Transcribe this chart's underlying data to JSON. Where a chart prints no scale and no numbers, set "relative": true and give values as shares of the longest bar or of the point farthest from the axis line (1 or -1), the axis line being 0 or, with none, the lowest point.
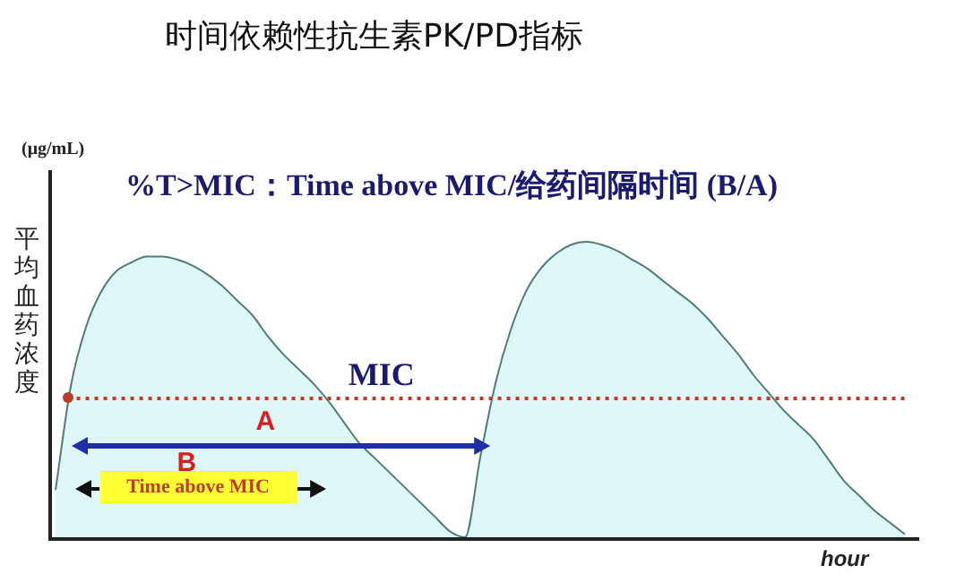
{
  "chart_data": {
    "type": "area",
    "title": "时间依赖性抗生素PK/PD指标",
    "subtitle": "%T>MIC：Time above MIC/给药间隔时间 (B/A)",
    "ylabel": "平均血药浓度",
    "xlabel": "hour",
    "relative": true,
    "legend": false,
    "annotations": [
      "(μg/mL)",
      "A",
      "B",
      "Time above MIC"
    ],
    "ref_lines": [
      {
        "axis": "y",
        "value": 0.47,
        "label": "MIC",
        "color": "#c0392b",
        "line_style": "dotted"
      }
    ],
    "categories": [
      null,
      null,
      null,
      null,
      null,
      null,
      null,
      null,
      null,
      null,
      null,
      null,
      null,
      null,
      null,
      null,
      null,
      null,
      null,
      null,
      null,
      null,
      null,
      null,
      null,
      null,
      null,
      null,
      null,
      null,
      null,
      null,
      null,
      null,
      null,
      null,
      null,
      null,
      null,
      null,
      null,
      null,
      null,
      null,
      null,
      null,
      null,
      null,
      null,
      null,
      null,
      null,
      null,
      null,
      null,
      null,
      null
    ],
    "series": [
      {
        "color": "#4f7d74",
        "values": [
          0.16,
          0.51,
          0.71,
          0.83,
          0.9,
          0.93,
          0.95,
          0.95,
          0.94,
          0.92,
          0.89,
          0.85,
          0.8,
          0.75,
          0.68,
          0.62,
          0.57,
          0.52,
          0.46,
          0.39,
          0.32,
          0.27,
          0.22,
          0.17,
          0.12,
          0.07,
          0.02,
          0,
          0.27,
          0.52,
          0.7,
          0.83,
          0.91,
          0.96,
          0.99,
          1,
          0.99,
          0.97,
          0.94,
          0.91,
          0.87,
          0.83,
          0.79,
          0.74,
          0.68,
          0.62,
          0.55,
          0.49,
          0.43,
          0.38,
          0.33,
          0.26,
          0.19,
          0.14,
          0.09,
          0.05,
          0.01
        ]
      }
    ]
  }
}
